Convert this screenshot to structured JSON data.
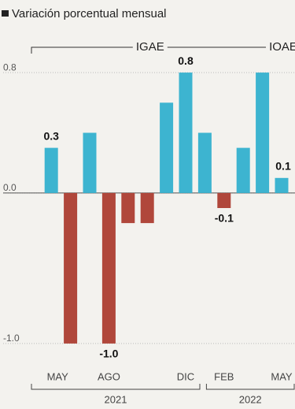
{
  "chart_data": {
    "type": "bar",
    "title": "Variación porcentual mensual",
    "categories": [
      "MAY",
      null,
      null,
      "AGO",
      null,
      null,
      null,
      "DIC",
      null,
      "FEB",
      null,
      null,
      "MAY"
    ],
    "series": [
      {
        "values": [
          0.3,
          -1.0,
          0.4,
          -1.0,
          -0.2,
          -0.2,
          0.6,
          0.8,
          0.4,
          -0.1,
          0.3,
          0.8,
          0.1
        ],
        "value_labels": [
          "0.3",
          null,
          null,
          "-1.0",
          null,
          null,
          null,
          "0.8",
          null,
          "-0.1",
          null,
          null,
          "0.1"
        ],
        "colors": {
          "positive": "#3db4d0",
          "negative": "#b0473b"
        }
      }
    ],
    "groups": [
      "IGAE",
      "IOAE"
    ],
    "years": [
      "2021",
      "2022"
    ],
    "ylim": [
      -1.1,
      0.9
    ],
    "yticks": [
      0.8,
      {
        "value": 0,
        "label": "0.0"
      },
      {
        "value": -1,
        "label": "-1.0"
      }
    ],
    "grid": true
  }
}
